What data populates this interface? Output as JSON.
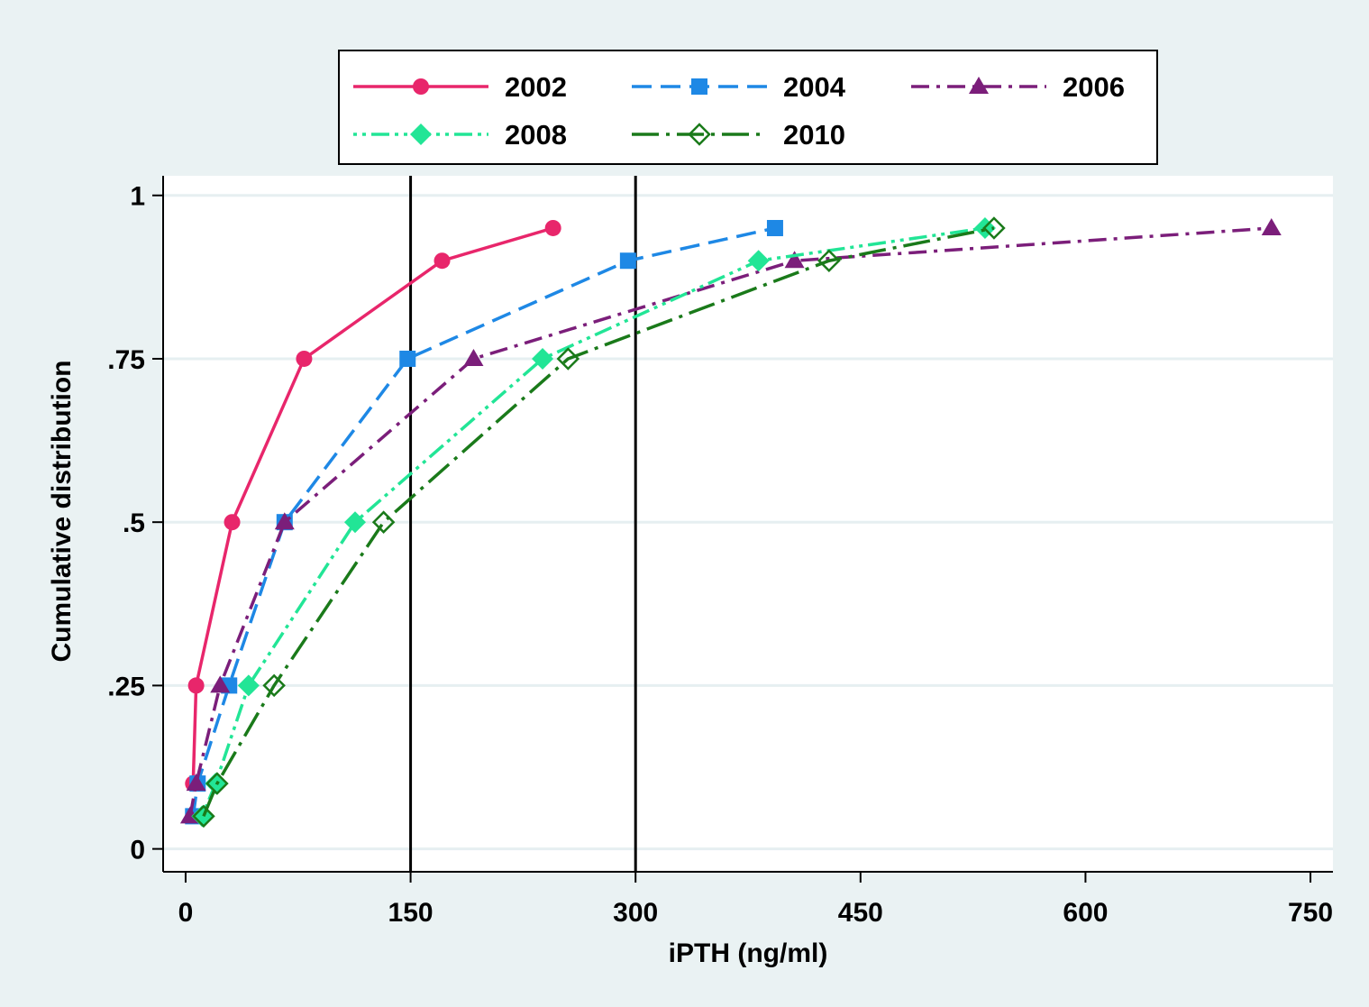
{
  "chart_data": {
    "type": "line",
    "title": "",
    "xlabel": "iPTH (ng/ml)",
    "ylabel": "Cumulative distribution",
    "xlim": [
      -15,
      765
    ],
    "ylim": [
      -0.035,
      1.03
    ],
    "xticks": [
      0,
      150,
      300,
      450,
      600,
      750
    ],
    "xtick_labels": [
      "0",
      "150",
      "300",
      "450",
      "600",
      "750"
    ],
    "yticks": [
      0,
      0.25,
      0.5,
      0.75,
      1
    ],
    "ytick_labels": [
      "0",
      ".25",
      ".5",
      ".75",
      "1"
    ],
    "grid": "horizontal",
    "legend_position": "top",
    "reference_lines_x": [
      150,
      300
    ],
    "series": [
      {
        "name": "2002",
        "color": "#e8266b",
        "dash": "solid",
        "marker": "circle-filled",
        "x": [
          5,
          7,
          31,
          79,
          171,
          245
        ],
        "y": [
          0.1,
          0.25,
          0.5,
          0.75,
          0.9,
          0.95
        ]
      },
      {
        "name": "2004",
        "color": "#1e88e5",
        "dash": "dashed",
        "marker": "square-filled",
        "x": [
          5,
          8,
          29,
          66,
          148,
          295,
          393
        ],
        "y": [
          0.05,
          0.1,
          0.25,
          0.5,
          0.75,
          0.9,
          0.95
        ]
      },
      {
        "name": "2006",
        "color": "#7b1e7a",
        "dash": "dashdot",
        "marker": "triangle-filled",
        "x": [
          3,
          7,
          23,
          66,
          192,
          406,
          724
        ],
        "y": [
          0.05,
          0.1,
          0.25,
          0.5,
          0.75,
          0.9,
          0.95
        ]
      },
      {
        "name": "2008",
        "color": "#22e596",
        "dash": "dashdotdot",
        "marker": "diamond-filled",
        "x": [
          11,
          20,
          42,
          113,
          238,
          382,
          533
        ],
        "y": [
          0.05,
          0.1,
          0.25,
          0.5,
          0.75,
          0.9,
          0.95
        ]
      },
      {
        "name": "2010",
        "color": "#1a7a1a",
        "dash": "longdashdot",
        "marker": "diamond-hollow",
        "x": [
          12,
          21,
          59,
          132,
          255,
          429,
          539
        ],
        "y": [
          0.05,
          0.1,
          0.25,
          0.5,
          0.75,
          0.9,
          0.95
        ]
      }
    ]
  }
}
